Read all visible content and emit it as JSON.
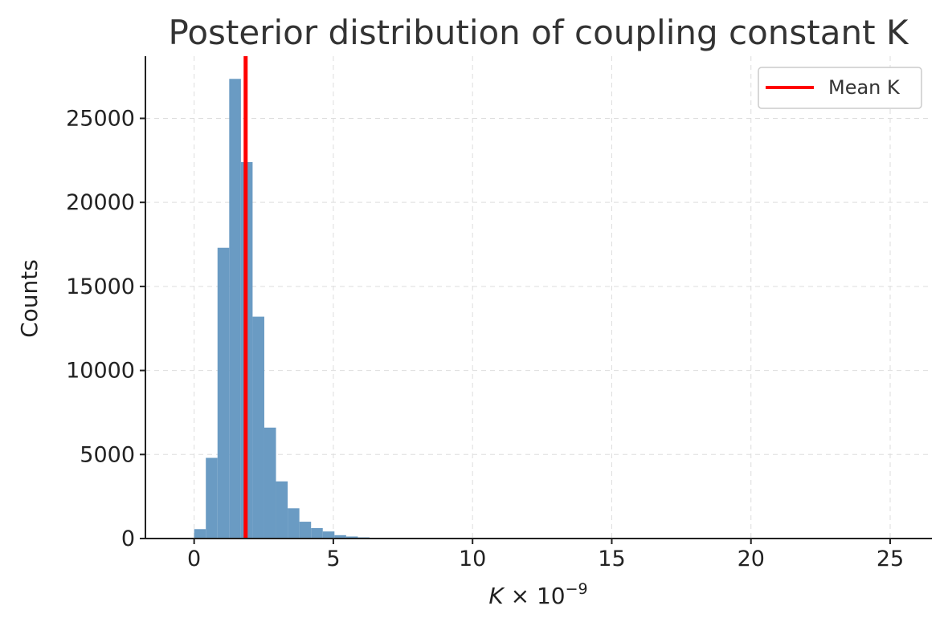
{
  "chart_data": {
    "type": "bar",
    "title": "Posterior distribution of coupling constant K",
    "xlabel_main": "K",
    "xlabel_rest": " × 10",
    "xlabel_exp": "−9",
    "ylabel": "Counts",
    "xlim": [
      -1.75,
      26.5
    ],
    "ylim": [
      0,
      28700
    ],
    "xticks": [
      0,
      5,
      10,
      15,
      20,
      25
    ],
    "yticks": [
      0,
      5000,
      10000,
      15000,
      20000,
      25000
    ],
    "grid": true,
    "legend_position": "top-right",
    "bar_color": "#6a9bc3",
    "mean_color": "#ff0000",
    "mean_label": "Mean K",
    "mean_value": 1.85,
    "bins": {
      "start": 0.0,
      "width": 0.42,
      "counts": [
        560,
        4800,
        17300,
        27350,
        22400,
        13200,
        6600,
        3400,
        1800,
        1000,
        620,
        420,
        200,
        120,
        70,
        40,
        20,
        10,
        5,
        3
      ]
    }
  }
}
